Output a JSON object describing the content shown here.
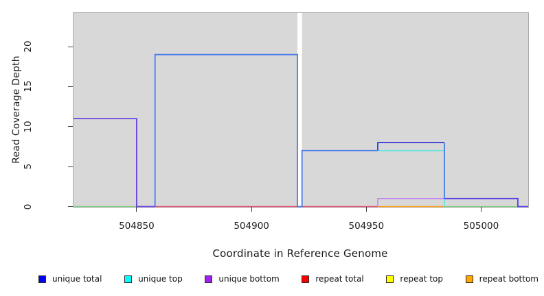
{
  "chart_data": {
    "type": "line",
    "subtype": "step-function-read-coverage",
    "title": "",
    "xlabel": "Coordinate in Reference Genome",
    "ylabel": "Read Coverage Depth",
    "xlim": [
      504822.5,
      505020.5
    ],
    "ylim": [
      0,
      24.2
    ],
    "x_ticks": [
      504850,
      504900,
      504950,
      505000
    ],
    "y_ticks": [
      0,
      5,
      10,
      15,
      20
    ],
    "grid": false,
    "plot_background": "#d8d8d8",
    "legend_position": "bottom",
    "legend": [
      {
        "label": "unique total",
        "color": "#0000f5"
      },
      {
        "label": "unique top",
        "color": "#00ffff"
      },
      {
        "label": "unique bottom",
        "color": "#a020f0"
      },
      {
        "label": "repeat total",
        "color": "#f50000"
      },
      {
        "label": "repeat top",
        "color": "#ffff00"
      },
      {
        "label": "repeat bottom",
        "color": "#ffa500"
      }
    ],
    "no_data_gap": {
      "x_start": 504920,
      "x_end": 504922,
      "color": "#ffffff"
    },
    "unique_total_steps": [
      [
        504822.5,
        11
      ],
      [
        504850,
        0
      ],
      [
        504858,
        19
      ],
      [
        504920,
        0
      ],
      [
        504922,
        7
      ],
      [
        504955,
        8
      ],
      [
        504984,
        1
      ],
      [
        505016,
        0
      ],
      [
        505020.5,
        0
      ]
    ],
    "unique_top_steps_visible": [
      [
        504955,
        7
      ],
      [
        504984,
        0
      ]
    ],
    "unique_bottom_steps_visible": [
      [
        504822.5,
        11
      ],
      [
        504850,
        0
      ],
      [
        504955,
        1
      ],
      [
        504984,
        1
      ],
      [
        505016,
        0
      ]
    ],
    "repeat_depth_constant": 0,
    "segments": [
      {
        "name": "baseline-left-green",
        "color": "#7ecb7e",
        "width": 1.4,
        "points": [
          [
            504822.5,
            0
          ],
          [
            504850,
            0
          ]
        ]
      },
      {
        "name": "baseline-mid-crimson",
        "color": "#dc4e6c",
        "width": 1.4,
        "points": [
          [
            504858,
            0
          ],
          [
            504955,
            0
          ]
        ]
      },
      {
        "name": "baseline-repeat-orange",
        "color": "#ff9d14",
        "width": 1.6,
        "points": [
          [
            504955,
            0
          ],
          [
            504984,
            0
          ]
        ]
      },
      {
        "name": "baseline-right-green",
        "color": "#7ecb7e",
        "width": 1.4,
        "points": [
          [
            504984,
            0
          ],
          [
            505016,
            0
          ]
        ]
      },
      {
        "name": "unique-bottom-level1-violet",
        "color": "#c583f0",
        "width": 1.6,
        "points": [
          [
            504955,
            0
          ],
          [
            504955,
            1
          ],
          [
            504984,
            1
          ]
        ]
      },
      {
        "name": "unique-top-cyan",
        "color": "#5de4e0",
        "width": 1.6,
        "points": [
          [
            504955,
            7
          ],
          [
            504984,
            7
          ],
          [
            504984,
            0
          ]
        ]
      },
      {
        "name": "unique-total-dark-level8",
        "color": "#3330d8",
        "width": 1.8,
        "points": [
          [
            504955,
            7
          ],
          [
            504955,
            8
          ],
          [
            504984,
            8
          ]
        ]
      },
      {
        "name": "unique-total-drop-8-to-1",
        "color": "#4a7bea",
        "width": 1.8,
        "points": [
          [
            504984,
            8
          ],
          [
            504984,
            1
          ]
        ]
      },
      {
        "name": "unique-total-bright-blue",
        "color": "#4a7bea",
        "width": 1.8,
        "points": [
          [
            504858,
            0
          ],
          [
            504858,
            19
          ],
          [
            504920,
            19
          ],
          [
            504920,
            0
          ],
          [
            504922,
            0
          ],
          [
            504922,
            7
          ],
          [
            504955,
            7
          ]
        ]
      },
      {
        "name": "total-plus-bottom-level11",
        "color": "#6742de",
        "width": 1.8,
        "points": [
          [
            504822.5,
            11
          ],
          [
            504850,
            11
          ],
          [
            504850,
            0
          ],
          [
            504858,
            0
          ]
        ]
      },
      {
        "name": "total-plus-bottom-level1",
        "color": "#5b3fe4",
        "width": 1.8,
        "points": [
          [
            504984,
            1
          ],
          [
            505016,
            1
          ],
          [
            505016,
            0
          ],
          [
            505020.5,
            0
          ]
        ]
      }
    ]
  }
}
